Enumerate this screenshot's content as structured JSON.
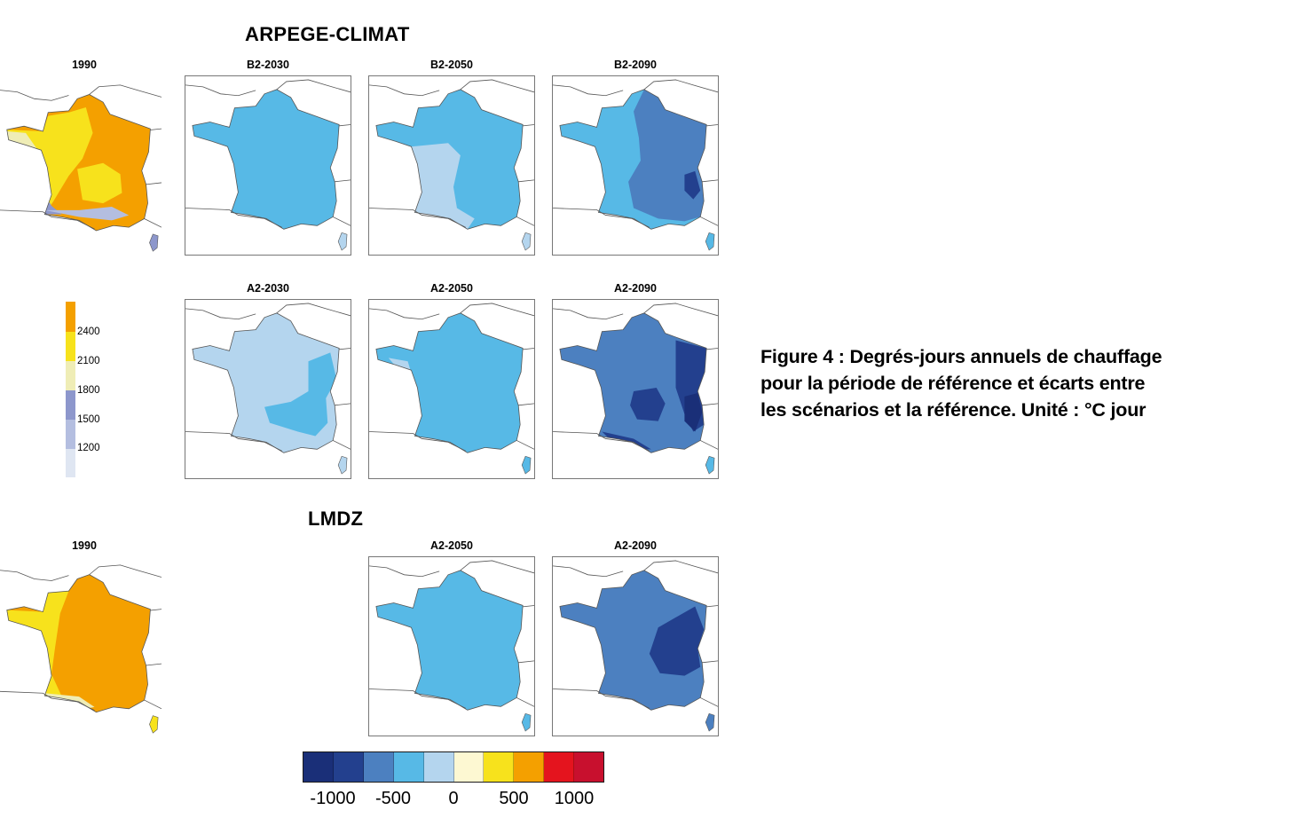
{
  "titles": {
    "arpege": "ARPEGE-CLIMAT",
    "lmdz": "LMDZ"
  },
  "maps": {
    "arpege_1990": {
      "label": "1990"
    },
    "b2_2030": {
      "label": "B2-2030"
    },
    "b2_2050": {
      "label": "B2-2050"
    },
    "b2_2090": {
      "label": "B2-2090"
    },
    "a2_2030": {
      "label": "A2-2030"
    },
    "a2_2050": {
      "label": "A2-2050"
    },
    "a2_2090": {
      "label": "A2-2090"
    },
    "lmdz_1990": {
      "label": "1990"
    },
    "lmdz_a2_2050": {
      "label": "A2-2050"
    },
    "lmdz_a2_2090": {
      "label": "A2-2090"
    }
  },
  "reference_scale": {
    "ticks": [
      "2400",
      "2100",
      "1800",
      "1500",
      "1200"
    ],
    "colors": [
      "#f4a000",
      "#f7e21c",
      "#efedb6",
      "#8d97cc",
      "#b4bee0",
      "#dfe6f2"
    ]
  },
  "difference_scale": {
    "ticks": [
      "-1000",
      "-500",
      "0",
      "500",
      "1000"
    ],
    "colors": [
      "#1a2f78",
      "#23408e",
      "#4c80c0",
      "#57b9e6",
      "#b4d5ee",
      "#fdf8d2",
      "#f7e21c",
      "#f4a000",
      "#e4141e",
      "#c8102e"
    ]
  },
  "caption": {
    "line1": "Figure 4 : Degrés-jours annuels de chauffage",
    "line2": "pour la période de référence et écarts entre",
    "line3": "les scénarios et la référence. Unité : °C jour"
  }
}
